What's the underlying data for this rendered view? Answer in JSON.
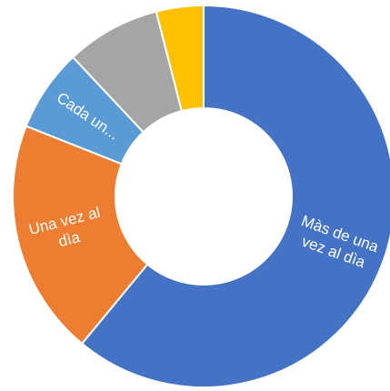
{
  "chart_data": {
    "type": "donut",
    "categories": [
      "Màs de una vez al dìa",
      "Una vez al dìa",
      "Cada un...",
      null,
      null
    ],
    "values": [
      61,
      20,
      7,
      8,
      4
    ],
    "colors": [
      "#4472c4",
      "#ed7d31",
      "#5b9bd5",
      "#a5a5a5",
      "#ffc000"
    ]
  }
}
